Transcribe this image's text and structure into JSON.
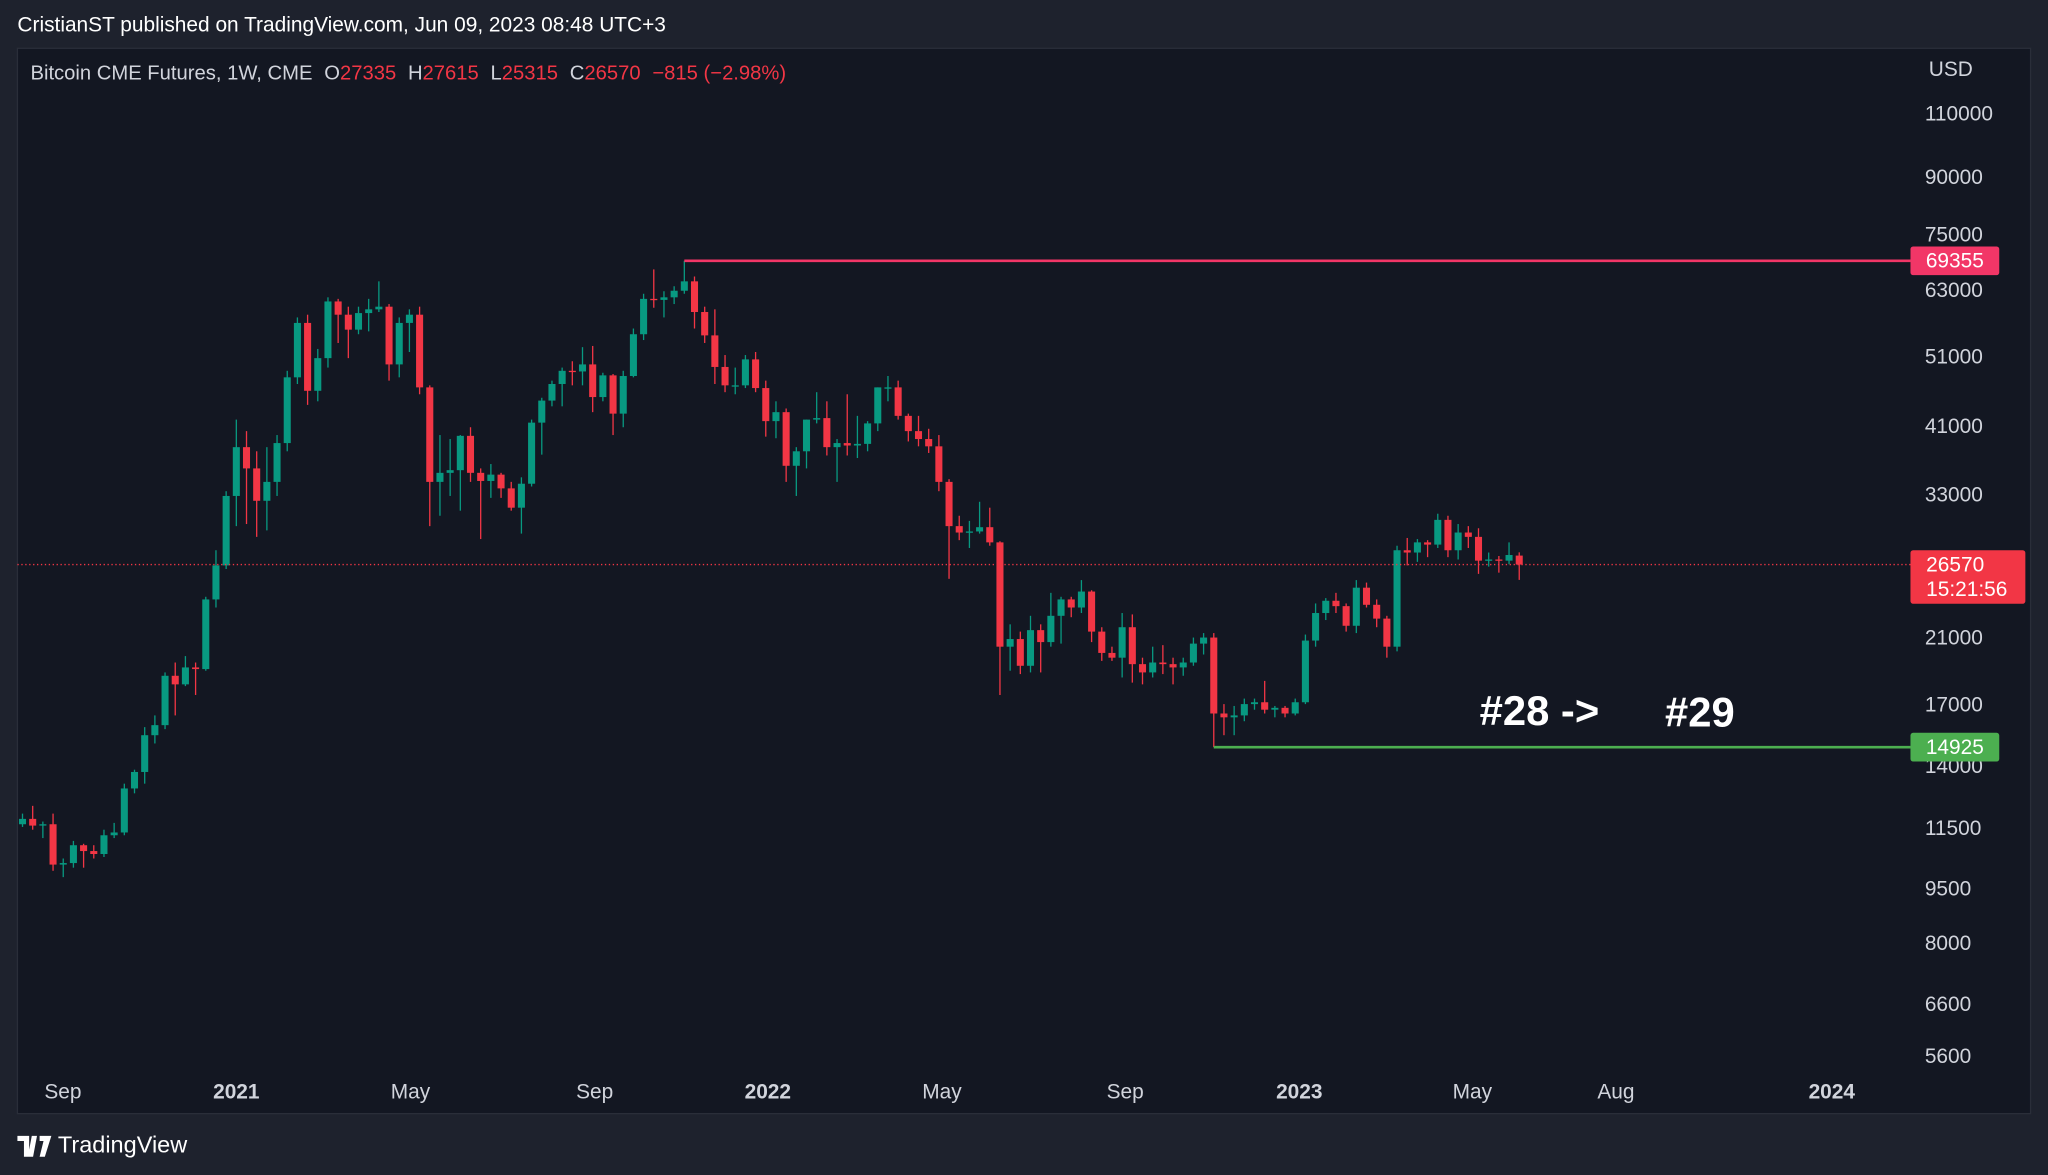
{
  "header": {
    "publisher": "CristianST published on TradingView.com, Jun 09, 2023 08:48 UTC+3"
  },
  "chart_data": {
    "type": "candlestick",
    "title": "Bitcoin CME Futures, 1W, CME",
    "ohlc_labels": [
      "O",
      "H",
      "L",
      "C"
    ],
    "change_label": "−815 (−2.98%)",
    "currency": "USD",
    "countdown": "15:21:56",
    "annotations": [
      "#28 ->",
      "#29"
    ],
    "up_color": "#089981",
    "down_color": "#f23645",
    "log_scale": true,
    "grid": false,
    "xlim": [
      -0.5,
      184.4
    ],
    "xticks": [
      {
        "value": 3.97,
        "label": "Sep"
      },
      {
        "value": 21.0,
        "label": "2021"
      },
      {
        "value": 38.1,
        "label": "May"
      },
      {
        "value": 56.2,
        "label": "Sep"
      },
      {
        "value": 73.2,
        "label": "2022"
      },
      {
        "value": 90.3,
        "label": "May"
      },
      {
        "value": 108.3,
        "label": "Sep"
      },
      {
        "value": 125.4,
        "label": "2023"
      },
      {
        "value": 142.4,
        "label": "May"
      },
      {
        "value": 156.5,
        "label": "Aug"
      },
      {
        "value": 177.7,
        "label": "2024"
      }
    ],
    "ylim": [
      5330,
      135700
    ],
    "yticks": [
      110000,
      90000,
      75000,
      63000,
      51000,
      41000,
      33000,
      21000,
      17000,
      14000,
      11500,
      9500,
      8000,
      6600,
      5600
    ],
    "levels": [
      {
        "value": 69355,
        "start": 65,
        "color": "#f23667"
      },
      {
        "value": 14925,
        "start": 117,
        "color": "#4caf50"
      }
    ],
    "candles": [
      [
        11700,
        12100,
        11600,
        11900
      ],
      [
        11900,
        12400,
        11500,
        11650
      ],
      [
        11650,
        11800,
        11200,
        11700
      ],
      [
        11700,
        12100,
        10100,
        10300
      ],
      [
        10300,
        10500,
        9900,
        10350
      ],
      [
        10350,
        11100,
        10200,
        10950
      ],
      [
        10950,
        11000,
        10200,
        10750
      ],
      [
        10750,
        10950,
        10500,
        10650
      ],
      [
        10650,
        11500,
        10550,
        11300
      ],
      [
        11300,
        11750,
        11200,
        11400
      ],
      [
        11400,
        13300,
        11300,
        13100
      ],
      [
        13100,
        13900,
        12900,
        13800
      ],
      [
        13800,
        15900,
        13300,
        15500
      ],
      [
        15500,
        16500,
        15100,
        16000
      ],
      [
        16000,
        18900,
        15800,
        18700
      ],
      [
        18700,
        19500,
        16500,
        18200
      ],
      [
        18200,
        19900,
        18100,
        19200
      ],
      [
        19200,
        19500,
        17600,
        19100
      ],
      [
        19100,
        24000,
        19000,
        23800
      ],
      [
        23800,
        27800,
        23200,
        26500
      ],
      [
        26500,
        33500,
        26200,
        33000
      ],
      [
        33000,
        42000,
        30000,
        38500
      ],
      [
        38500,
        40500,
        30200,
        36000
      ],
      [
        36000,
        38000,
        29000,
        32500
      ],
      [
        32500,
        38500,
        29600,
        34500
      ],
      [
        34500,
        40000,
        33000,
        39000
      ],
      [
        39000,
        49000,
        38000,
        48000
      ],
      [
        48000,
        58000,
        47000,
        57000
      ],
      [
        57000,
        58500,
        44000,
        46000
      ],
      [
        46000,
        52500,
        44500,
        51000
      ],
      [
        51000,
        61800,
        49500,
        61000
      ],
      [
        61000,
        61500,
        53500,
        58500
      ],
      [
        58500,
        60000,
        51000,
        55800
      ],
      [
        55800,
        60000,
        55000,
        58800
      ],
      [
        58800,
        61500,
        55500,
        59500
      ],
      [
        59500,
        65000,
        59000,
        60000
      ],
      [
        60000,
        60500,
        47500,
        50000
      ],
      [
        50000,
        58000,
        48000,
        57000
      ],
      [
        57000,
        59500,
        52000,
        58500
      ],
      [
        58500,
        60000,
        45500,
        46500
      ],
      [
        46500,
        46800,
        30000,
        34500
      ],
      [
        34500,
        40000,
        31000,
        35500
      ],
      [
        35500,
        39500,
        33000,
        35800
      ],
      [
        35800,
        40000,
        31500,
        39900
      ],
      [
        39900,
        41000,
        34500,
        35500
      ],
      [
        35500,
        36000,
        28800,
        34600
      ],
      [
        34600,
        36500,
        32800,
        35300
      ],
      [
        35300,
        35500,
        32800,
        33800
      ],
      [
        33800,
        34500,
        31500,
        31800
      ],
      [
        31800,
        35000,
        29300,
        34300
      ],
      [
        34300,
        42000,
        34000,
        41600
      ],
      [
        41600,
        45000,
        37600,
        44600
      ],
      [
        44600,
        47500,
        43800,
        47000
      ],
      [
        47000,
        49500,
        43800,
        49000
      ],
      [
        49000,
        50500,
        46800,
        48900
      ],
      [
        48900,
        52800,
        46800,
        50000
      ],
      [
        50000,
        53000,
        43000,
        45100
      ],
      [
        45100,
        48700,
        44500,
        48300
      ],
      [
        48300,
        48500,
        40000,
        42800
      ],
      [
        42800,
        49000,
        41000,
        48200
      ],
      [
        48200,
        56000,
        48000,
        55000
      ],
      [
        55000,
        62500,
        54000,
        61500
      ],
      [
        61500,
        67500,
        59800,
        61300
      ],
      [
        61300,
        63000,
        58000,
        61800
      ],
      [
        61800,
        64000,
        60500,
        63100
      ],
      [
        63100,
        69355,
        62500,
        65000
      ],
      [
        65000,
        66000,
        56000,
        59000
      ],
      [
        59000,
        60000,
        53500,
        54800
      ],
      [
        54800,
        59500,
        47000,
        49600
      ],
      [
        49600,
        51500,
        45800,
        46800
      ],
      [
        46800,
        49500,
        45500,
        46800
      ],
      [
        46800,
        51500,
        46400,
        50800
      ],
      [
        50800,
        52000,
        45800,
        46400
      ],
      [
        46400,
        47500,
        39800,
        41800
      ],
      [
        41800,
        44500,
        39600,
        43000
      ],
      [
        43000,
        43500,
        34500,
        36300
      ],
      [
        36300,
        38500,
        33000,
        38000
      ],
      [
        38000,
        42000,
        36000,
        42000
      ],
      [
        42000,
        45800,
        41500,
        42200
      ],
      [
        42200,
        44500,
        37500,
        38500
      ],
      [
        38500,
        39500,
        34500,
        39000
      ],
      [
        39000,
        45500,
        37500,
        38700
      ],
      [
        38700,
        42500,
        37200,
        38900
      ],
      [
        38900,
        41800,
        38000,
        41500
      ],
      [
        41500,
        46500,
        40500,
        46500
      ],
      [
        46500,
        48200,
        44500,
        46500
      ],
      [
        46500,
        47500,
        42000,
        42500
      ],
      [
        42500,
        42800,
        39200,
        40500
      ],
      [
        40500,
        42500,
        38600,
        39500
      ],
      [
        39500,
        40800,
        37800,
        38600
      ],
      [
        38600,
        40000,
        33500,
        34500
      ],
      [
        34500,
        34800,
        25400,
        30000
      ],
      [
        30000,
        31000,
        28700,
        29400
      ],
      [
        29400,
        30500,
        28000,
        29500
      ],
      [
        29500,
        32400,
        29300,
        29900
      ],
      [
        29900,
        31800,
        28200,
        28500
      ],
      [
        28500,
        28600,
        17600,
        20500
      ],
      [
        20500,
        22000,
        19000,
        21000
      ],
      [
        21000,
        21500,
        18800,
        19300
      ],
      [
        19300,
        22600,
        18900,
        21600
      ],
      [
        21600,
        22000,
        18900,
        20800
      ],
      [
        20800,
        24300,
        20500,
        22600
      ],
      [
        22600,
        24000,
        20700,
        23800
      ],
      [
        23800,
        24000,
        22500,
        23200
      ],
      [
        23200,
        25300,
        22800,
        24400
      ],
      [
        24400,
        24500,
        20800,
        21500
      ],
      [
        21500,
        21800,
        19600,
        20100
      ],
      [
        20100,
        20500,
        19600,
        19800
      ],
      [
        19800,
        22800,
        18600,
        21800
      ],
      [
        21800,
        22700,
        18300,
        19400
      ],
      [
        19400,
        19800,
        18200,
        18900
      ],
      [
        18900,
        20500,
        18600,
        19500
      ],
      [
        19500,
        20600,
        18800,
        19400
      ],
      [
        19400,
        19800,
        18200,
        19200
      ],
      [
        19200,
        19800,
        18700,
        19500
      ],
      [
        19500,
        21100,
        19300,
        20700
      ],
      [
        20700,
        21400,
        20000,
        21100
      ],
      [
        21100,
        21400,
        14925,
        16600
      ],
      [
        16600,
        17100,
        15500,
        16400
      ],
      [
        16400,
        17000,
        15500,
        16500
      ],
      [
        16500,
        17400,
        16200,
        17100
      ],
      [
        17100,
        17400,
        16800,
        17200
      ],
      [
        17200,
        18400,
        16600,
        16800
      ],
      [
        16800,
        17000,
        16400,
        16900
      ],
      [
        16900,
        17000,
        16400,
        16600
      ],
      [
        16600,
        17400,
        16500,
        17200
      ],
      [
        17200,
        21300,
        17100,
        20900
      ],
      [
        20900,
        23500,
        20500,
        22800
      ],
      [
        22800,
        23900,
        22300,
        23700
      ],
      [
        23700,
        24300,
        22800,
        23300
      ],
      [
        23300,
        23500,
        21500,
        21900
      ],
      [
        21900,
        25300,
        21400,
        24700
      ],
      [
        24700,
        25100,
        23200,
        23400
      ],
      [
        23400,
        23800,
        21800,
        22400
      ],
      [
        22400,
        22600,
        19800,
        20500
      ],
      [
        20500,
        28200,
        20200,
        27800
      ],
      [
        27800,
        28900,
        26500,
        27600
      ],
      [
        27600,
        28800,
        26800,
        28500
      ],
      [
        28500,
        28700,
        27200,
        28300
      ],
      [
        28300,
        31200,
        28000,
        30600
      ],
      [
        30600,
        31000,
        27200,
        27800
      ],
      [
        27800,
        30200,
        27000,
        29400
      ],
      [
        29400,
        30000,
        28000,
        29000
      ],
      [
        29000,
        29800,
        25800,
        26900
      ],
      [
        26900,
        27600,
        26400,
        27000
      ],
      [
        27000,
        27300,
        25900,
        26900
      ],
      [
        26900,
        28500,
        26600,
        27385
      ],
      [
        27335,
        27615,
        25315,
        26570
      ]
    ]
  },
  "footer": {
    "brand": "TradingView"
  }
}
